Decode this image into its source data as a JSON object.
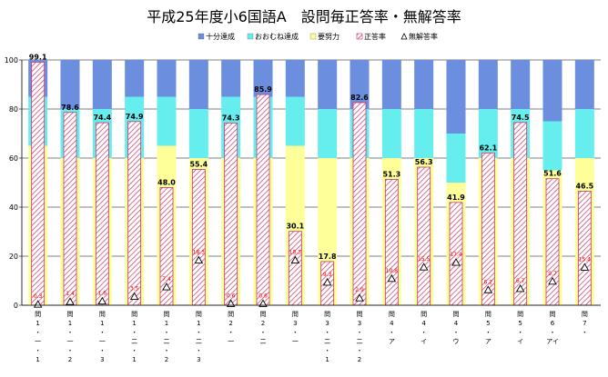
{
  "chart_data": {
    "type": "bar",
    "title": "平成25年度小6国語A　設問毎正答率・無解答率",
    "legend": {
      "position": "top-right",
      "items": [
        {
          "key": "s1",
          "label": "十分達成",
          "color": "#6B8EDF"
        },
        {
          "key": "s2",
          "label": "おおむね達成",
          "color": "#66EEEE"
        },
        {
          "key": "s3",
          "label": "要努力",
          "color": "#FFFF99"
        },
        {
          "key": "correct",
          "label": "正答率",
          "color": "#CC3366"
        },
        {
          "key": "noanswer",
          "label": "無解答率",
          "color": "#000000"
        }
      ]
    },
    "ylim": [
      0,
      100
    ],
    "yticks": [
      0,
      20,
      40,
      60,
      80,
      100
    ],
    "grid": true,
    "categories": [
      {
        "lines": [
          "問",
          "1",
          "・",
          "一",
          "・",
          "1"
        ]
      },
      {
        "lines": [
          "問",
          "1",
          "・",
          "一",
          "・",
          "2"
        ]
      },
      {
        "lines": [
          "問",
          "1",
          "・",
          "一",
          "・",
          "3"
        ]
      },
      {
        "lines": [
          "問",
          "1",
          "・",
          "二",
          "・",
          "1"
        ]
      },
      {
        "lines": [
          "問",
          "1",
          "・",
          "二",
          "・",
          "2"
        ]
      },
      {
        "lines": [
          "問",
          "1",
          "・",
          "二",
          "・",
          "3"
        ]
      },
      {
        "lines": [
          "問",
          "2",
          "・",
          "一"
        ]
      },
      {
        "lines": [
          "問",
          "2",
          "・",
          "二"
        ]
      },
      {
        "lines": [
          "問",
          "3",
          "・",
          "一"
        ]
      },
      {
        "lines": [
          "問",
          "3",
          "・",
          "二",
          "・",
          "1"
        ]
      },
      {
        "lines": [
          "問",
          "3",
          "・",
          "二",
          "・",
          "2"
        ]
      },
      {
        "lines": [
          "問",
          "4",
          "・",
          "ア"
        ]
      },
      {
        "lines": [
          "問",
          "4",
          "・",
          "イ"
        ]
      },
      {
        "lines": [
          "問",
          "4",
          "・",
          "ウ"
        ]
      },
      {
        "lines": [
          "問",
          "5",
          "・",
          "ア"
        ]
      },
      {
        "lines": [
          "問",
          "5",
          "・",
          "イ"
        ]
      },
      {
        "lines": [
          "問",
          "6",
          "・",
          "アイ"
        ]
      },
      {
        "lines": [
          "問",
          "7",
          "・"
        ]
      }
    ],
    "bands": [
      {
        "effort_top": 65,
        "fair_top": 85
      },
      {
        "effort_top": 60,
        "fair_top": 80
      },
      {
        "effort_top": 60,
        "fair_top": 80
      },
      {
        "effort_top": 60,
        "fair_top": 85
      },
      {
        "effort_top": 65,
        "fair_top": 85
      },
      {
        "effort_top": 60,
        "fair_top": 80
      },
      {
        "effort_top": 60,
        "fair_top": 85
      },
      {
        "effort_top": 60,
        "fair_top": 85
      },
      {
        "effort_top": 65,
        "fair_top": 85
      },
      {
        "effort_top": 60,
        "fair_top": 80
      },
      {
        "effort_top": 60,
        "fair_top": 80
      },
      {
        "effort_top": 60,
        "fair_top": 80
      },
      {
        "effort_top": 60,
        "fair_top": 80
      },
      {
        "effort_top": 50,
        "fair_top": 70
      },
      {
        "effort_top": 60,
        "fair_top": 80
      },
      {
        "effort_top": 60,
        "fair_top": 80
      },
      {
        "effort_top": 55,
        "fair_top": 75
      },
      {
        "effort_top": 60,
        "fair_top": 80
      }
    ],
    "series": [
      {
        "name": "正答率",
        "values": [
          99.1,
          78.6,
          74.4,
          74.9,
          48.0,
          55.4,
          74.3,
          85.9,
          30.1,
          17.8,
          82.6,
          51.3,
          56.3,
          41.9,
          62.1,
          74.5,
          51.6,
          46.5
        ]
      },
      {
        "name": "無解答率",
        "values": [
          0.3,
          1.4,
          1.6,
          3.5,
          7.4,
          18.3,
          0.6,
          0.6,
          18.3,
          9.3,
          2.9,
          10.8,
          15.5,
          17.4,
          6.2,
          6.7,
          9.7,
          15.4
        ]
      }
    ],
    "value_labels": [
      "99.1",
      "78.6",
      "74.4",
      "74.9",
      "48.0",
      "55.4",
      "74.3",
      "85.9",
      "30.1",
      "17.8",
      "82.6",
      "51.3",
      "56.3",
      "41.9",
      "62.1",
      "74.5",
      "51.6",
      "46.5"
    ],
    "noanswer_labels": [
      "0.3",
      "1.4",
      "1.6",
      "3.5",
      "7.4",
      "18.3",
      "0.6",
      "0.6",
      "18.3",
      "9.3",
      "2.9",
      "10.8",
      "15.5",
      "17.4",
      "6.2",
      "6.7",
      "9.7",
      "15.4"
    ]
  }
}
